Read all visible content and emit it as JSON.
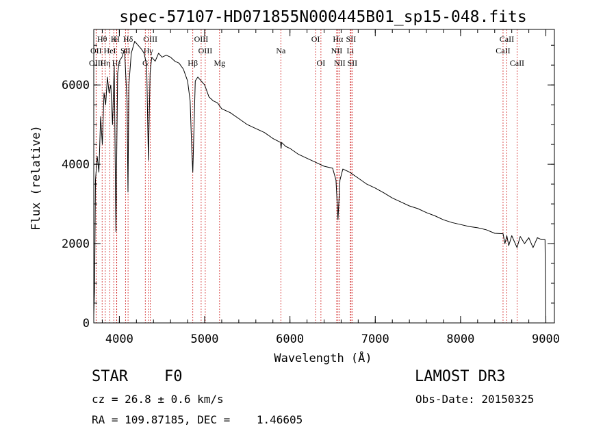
{
  "chart_data": {
    "type": "line",
    "title": "spec-57107-HD071855N000445B01_sp15-048.fits",
    "xlabel": "Wavelength (Å)",
    "ylabel": "Flux (relative)",
    "xlim": [
      3700,
      9100
    ],
    "ylim": [
      0,
      7400
    ],
    "x_ticks": [
      4000,
      5000,
      6000,
      7000,
      8000,
      9000
    ],
    "x_tick_labels": [
      "4000",
      "5000",
      "6000",
      "7000",
      "8000",
      "9000"
    ],
    "y_ticks": [
      0,
      2000,
      4000,
      6000
    ],
    "y_tick_labels": [
      "0",
      "2000",
      "4000",
      "6000"
    ],
    "grid": false,
    "series": [
      {
        "name": "spectrum",
        "x": [
          3700,
          3710,
          3720,
          3740,
          3760,
          3780,
          3800,
          3820,
          3840,
          3860,
          3880,
          3900,
          3920,
          3940,
          3960,
          3970,
          3980,
          4000,
          4030,
          4060,
          4090,
          4101,
          4112,
          4140,
          4180,
          4220,
          4260,
          4290,
          4320,
          4340,
          4360,
          4380,
          4420,
          4460,
          4500,
          4550,
          4600,
          4650,
          4700,
          4750,
          4800,
          4830,
          4850,
          4861,
          4872,
          4890,
          4920,
          4960,
          5000,
          5050,
          5100,
          5150,
          5200,
          5300,
          5400,
          5500,
          5600,
          5700,
          5800,
          5890,
          5896,
          5902,
          5950,
          6000,
          6100,
          6200,
          6300,
          6400,
          6500,
          6540,
          6563,
          6586,
          6620,
          6700,
          6800,
          6900,
          7000,
          7100,
          7200,
          7300,
          7400,
          7500,
          7600,
          7700,
          7800,
          7900,
          8000,
          8100,
          8200,
          8300,
          8400,
          8498,
          8520,
          8542,
          8565,
          8600,
          8662,
          8700,
          8750,
          8800,
          8850,
          8900,
          8950,
          8990,
          9000
        ],
        "y": [
          200,
          900,
          3600,
          4200,
          3800,
          5200,
          4500,
          5800,
          5500,
          6200,
          5800,
          6000,
          5000,
          6500,
          2300,
          4500,
          6300,
          6600,
          6700,
          6900,
          5600,
          3300,
          6000,
          6800,
          7100,
          7000,
          6900,
          6800,
          6500,
          4100,
          6300,
          6700,
          6600,
          6800,
          6700,
          6750,
          6700,
          6600,
          6550,
          6400,
          6100,
          5600,
          4300,
          3800,
          4700,
          6100,
          6200,
          6100,
          6000,
          5700,
          5600,
          5550,
          5400,
          5300,
          5150,
          5000,
          4900,
          4800,
          4650,
          4550,
          4400,
          4550,
          4450,
          4400,
          4250,
          4150,
          4050,
          3950,
          3900,
          3600,
          2600,
          3600,
          3880,
          3800,
          3650,
          3500,
          3400,
          3280,
          3150,
          3050,
          2950,
          2880,
          2780,
          2700,
          2600,
          2530,
          2480,
          2430,
          2400,
          2350,
          2260,
          2250,
          2000,
          2200,
          1950,
          2200,
          1900,
          2180,
          2000,
          2150,
          1900,
          2150,
          2100,
          2100,
          0
        ]
      }
    ],
    "line_markers": [
      {
        "label": "Hθ",
        "x": 3798,
        "row": 1
      },
      {
        "label": "OII",
        "x": 3727,
        "row": 2
      },
      {
        "label": "OIII",
        "x": 3727,
        "row": 3
      },
      {
        "label": "Hη",
        "x": 3835,
        "row": 3
      },
      {
        "label": "HeI",
        "x": 3889,
        "row": 2
      },
      {
        "label": "K",
        "x": 3934,
        "row": 1
      },
      {
        "label": "Hε",
        "x": 3970,
        "row": 3
      },
      {
        "label": "H",
        "x": 3968,
        "row": 1
      },
      {
        "label": "SII",
        "x": 4072,
        "row": 2
      },
      {
        "label": "Hδ",
        "x": 4102,
        "row": 1
      },
      {
        "label": "OIII",
        "x": 4363,
        "row": 1
      },
      {
        "label": "Hγ",
        "x": 4340,
        "row": 2
      },
      {
        "label": "G",
        "x": 4304,
        "row": 3
      },
      {
        "label": "Hβ",
        "x": 4861,
        "row": 3
      },
      {
        "label": "OIII",
        "x": 4959,
        "row": 1
      },
      {
        "label": "OIII",
        "x": 5007,
        "row": 2
      },
      {
        "label": "Mg",
        "x": 5175,
        "row": 3
      },
      {
        "label": "Na",
        "x": 5893,
        "row": 2
      },
      {
        "label": "OI",
        "x": 6300,
        "row": 1
      },
      {
        "label": "OI",
        "x": 6363,
        "row": 3
      },
      {
        "label": "Hα",
        "x": 6563,
        "row": 1
      },
      {
        "label": "NII",
        "x": 6548,
        "row": 2
      },
      {
        "label": "NII",
        "x": 6583,
        "row": 3
      },
      {
        "label": "SII",
        "x": 6716,
        "row": 1
      },
      {
        "label": "Li",
        "x": 6708,
        "row": 2
      },
      {
        "label": "SII",
        "x": 6731,
        "row": 3
      },
      {
        "label": "CaII",
        "x": 8542,
        "row": 1
      },
      {
        "label": "CaII",
        "x": 8498,
        "row": 2
      },
      {
        "label": "CaII",
        "x": 8662,
        "row": 3
      }
    ]
  },
  "info": {
    "object_class": "STAR",
    "subclass": "F0",
    "survey": "LAMOST DR3",
    "cz": "cz = 26.8 ± 0.6 km/s",
    "obs_date": "Obs-Date: 20150325",
    "coords": "RA = 109.87185, DEC =    1.46605"
  }
}
